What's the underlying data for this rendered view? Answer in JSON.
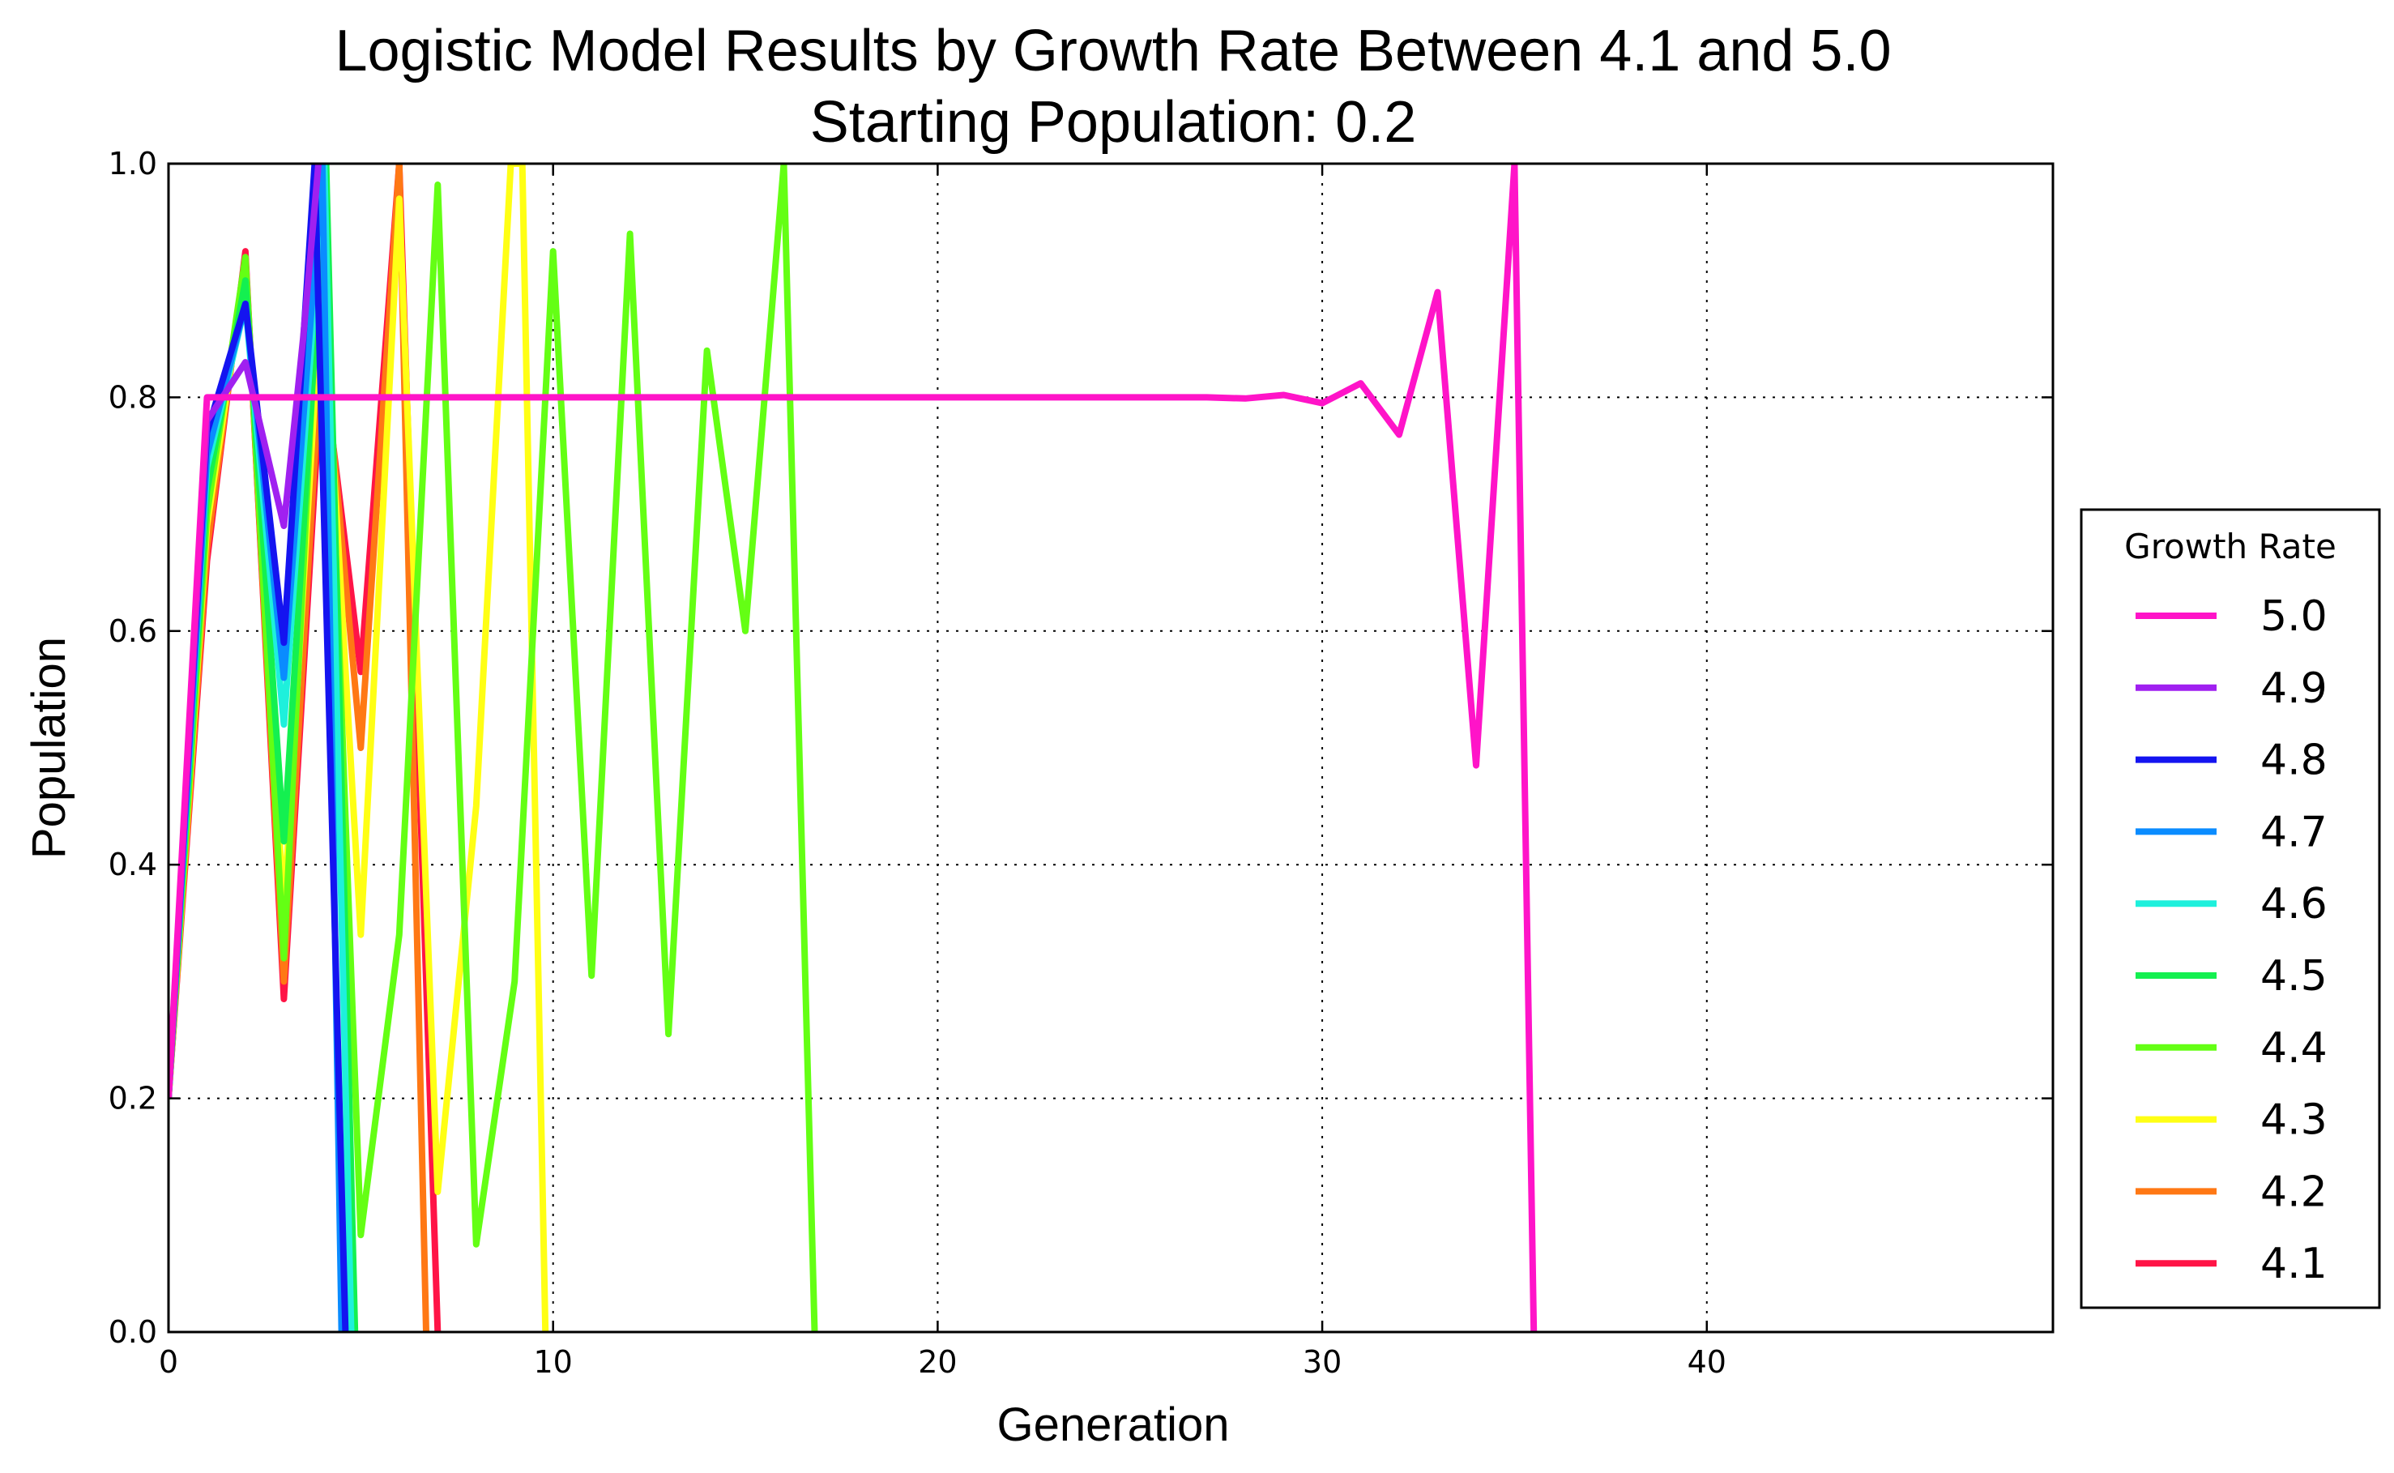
{
  "chart_data": {
    "type": "line",
    "title": "Logistic Model Results by Growth Rate Between 4.1 and 5.0",
    "subtitle": "Starting Population: 0.2",
    "xlabel": "Generation",
    "ylabel": "Population",
    "xlim": [
      0,
      49
    ],
    "ylim": [
      0,
      1
    ],
    "xticks": [
      0,
      10,
      20,
      30,
      40
    ],
    "xtick_labels": [
      "0",
      "10",
      "20",
      "30",
      "40"
    ],
    "yticks": [
      0,
      0.2,
      0.4,
      0.6,
      0.8,
      1.0
    ],
    "ytick_labels": [
      "0.0",
      "0.2",
      "0.4",
      "0.6",
      "0.8",
      "1.0"
    ],
    "grid": true,
    "legend": {
      "title": "Growth Rate",
      "placement": "right-outside"
    },
    "series": [
      {
        "name": "5.0",
        "color": "#ff14c8",
        "x": [
          0,
          1,
          2,
          3,
          4,
          5,
          6,
          7,
          8,
          9,
          10,
          11,
          12,
          13,
          14,
          15,
          16,
          17,
          18,
          19,
          20,
          21,
          22,
          23,
          24,
          25,
          26,
          27,
          28,
          29,
          30,
          31,
          32,
          33,
          34,
          35,
          35.5
        ],
        "y": [
          0.2,
          0.8,
          0.8,
          0.8,
          0.8,
          0.8,
          0.8,
          0.8,
          0.8,
          0.8,
          0.8,
          0.8,
          0.8,
          0.8,
          0.8,
          0.8,
          0.8,
          0.8,
          0.8,
          0.8,
          0.8,
          0.8,
          0.8,
          0.8,
          0.8,
          0.8,
          0.8,
          0.8,
          0.799,
          0.802,
          0.795,
          0.812,
          0.768,
          0.89,
          0.485,
          1.0,
          0.0
        ]
      },
      {
        "name": "4.9",
        "color": "#a020f0",
        "x": [
          0,
          1,
          2,
          3,
          3.5,
          3.9
        ],
        "y": [
          0.2,
          0.78,
          0.83,
          0.69,
          0.85,
          1.0
        ]
      },
      {
        "name": "4.8",
        "color": "#1414f0",
        "x": [
          0,
          1,
          2,
          3,
          3.8,
          4.6
        ],
        "y": [
          0.2,
          0.77,
          0.88,
          0.59,
          1.0,
          0.0
        ]
      },
      {
        "name": "4.7",
        "color": "#0a8cff",
        "x": [
          0,
          1,
          2,
          3,
          4,
          4.5
        ],
        "y": [
          0.2,
          0.75,
          0.88,
          0.56,
          1.0,
          0.0
        ]
      },
      {
        "name": "4.6",
        "color": "#1ef0dc",
        "x": [
          0,
          1,
          2,
          3,
          4.05,
          4.75
        ],
        "y": [
          0.2,
          0.74,
          0.88,
          0.52,
          1.0,
          0.0
        ]
      },
      {
        "name": "4.5",
        "color": "#14f050",
        "x": [
          0,
          1,
          2,
          3,
          4.1,
          4.85
        ],
        "y": [
          0.2,
          0.72,
          0.9,
          0.42,
          1.0,
          0.0
        ]
      },
      {
        "name": "4.4",
        "color": "#64ff14",
        "x": [
          0,
          1,
          2,
          3,
          4,
          5,
          6,
          7,
          8,
          9,
          10,
          11,
          12,
          13,
          14,
          15,
          16,
          16.8
        ],
        "y": [
          0.2,
          0.7,
          0.92,
          0.32,
          0.98,
          0.083,
          0.34,
          0.982,
          0.075,
          0.3,
          0.925,
          0.305,
          0.94,
          0.255,
          0.84,
          0.6,
          1.0,
          0.0
        ]
      },
      {
        "name": "4.3",
        "color": "#ffff14",
        "x": [
          0,
          1,
          2,
          3,
          4,
          5,
          6,
          7,
          8,
          8.9,
          9.2,
          9.8
        ],
        "y": [
          0.2,
          0.69,
          0.91,
          0.36,
          0.91,
          0.34,
          0.97,
          0.12,
          0.45,
          1.0,
          1.0,
          0.0
        ]
      },
      {
        "name": "4.2",
        "color": "#ff7814",
        "x": [
          0,
          1,
          2,
          3,
          4,
          5,
          6,
          6.7
        ],
        "y": [
          0.2,
          0.67,
          0.92,
          0.3,
          0.86,
          0.5,
          1.0,
          0.0
        ]
      },
      {
        "name": "4.1",
        "color": "#ff1446",
        "x": [
          0,
          1,
          2,
          3,
          4,
          5,
          6,
          7
        ],
        "y": [
          0.2,
          0.66,
          0.925,
          0.285,
          0.835,
          0.565,
          1.0,
          0.0
        ]
      }
    ]
  }
}
